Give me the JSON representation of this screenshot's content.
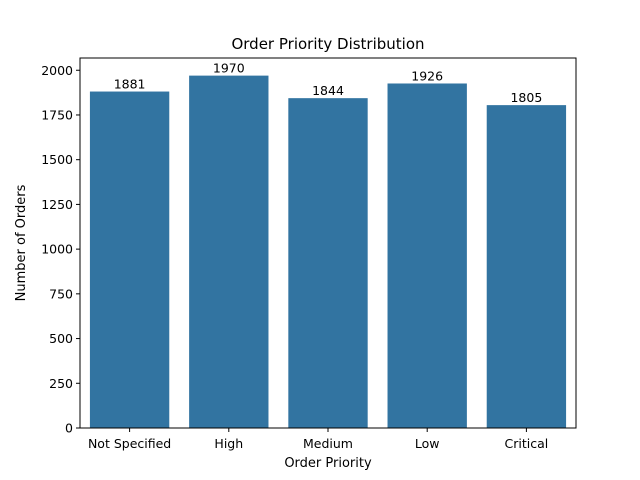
{
  "chart_data": {
    "type": "bar",
    "title": "Order Priority Distribution",
    "xlabel": "Order Priority",
    "ylabel": "Number of Orders",
    "categories": [
      "Not Specified",
      "High",
      "Medium",
      "Low",
      "Critical"
    ],
    "values": [
      1881,
      1970,
      1844,
      1926,
      1805
    ],
    "data_labels": [
      "1881",
      "1970",
      "1844",
      "1926",
      "1805"
    ],
    "yticks": [
      0,
      250,
      500,
      750,
      1000,
      1250,
      1500,
      1750,
      2000
    ],
    "ytick_labels": [
      "0",
      "250",
      "500",
      "750",
      "1000",
      "1250",
      "1500",
      "1750",
      "2000"
    ],
    "ylim": [
      0,
      2068.5
    ],
    "grid": false,
    "legend": "none",
    "bar_color": "#3274a1"
  }
}
